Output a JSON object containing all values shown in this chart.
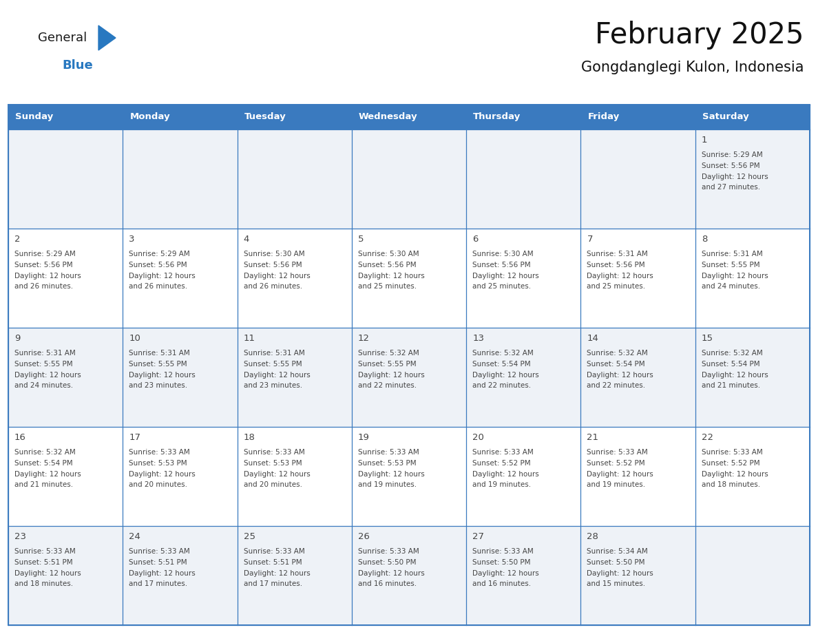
{
  "title": "February 2025",
  "subtitle": "Gongdanglegi Kulon, Indonesia",
  "header_color": "#3a7abf",
  "header_text_color": "#ffffff",
  "cell_bg_row0": "#eef2f7",
  "cell_bg_row1": "#ffffff",
  "border_color": "#3a7abf",
  "text_color": "#444444",
  "days_of_week": [
    "Sunday",
    "Monday",
    "Tuesday",
    "Wednesday",
    "Thursday",
    "Friday",
    "Saturday"
  ],
  "logo_text1": "General",
  "logo_text2": "Blue",
  "logo_color1": "#1a1a1a",
  "logo_color2": "#2878c0",
  "logo_triangle_color": "#2878c0",
  "calendar_data": [
    [
      null,
      null,
      null,
      null,
      null,
      null,
      {
        "day": 1,
        "sunrise": "5:29 AM",
        "sunset": "5:56 PM",
        "daylight_line1": "Daylight: 12 hours",
        "daylight_line2": "and 27 minutes."
      }
    ],
    [
      {
        "day": 2,
        "sunrise": "5:29 AM",
        "sunset": "5:56 PM",
        "daylight_line1": "Daylight: 12 hours",
        "daylight_line2": "and 26 minutes."
      },
      {
        "day": 3,
        "sunrise": "5:29 AM",
        "sunset": "5:56 PM",
        "daylight_line1": "Daylight: 12 hours",
        "daylight_line2": "and 26 minutes."
      },
      {
        "day": 4,
        "sunrise": "5:30 AM",
        "sunset": "5:56 PM",
        "daylight_line1": "Daylight: 12 hours",
        "daylight_line2": "and 26 minutes."
      },
      {
        "day": 5,
        "sunrise": "5:30 AM",
        "sunset": "5:56 PM",
        "daylight_line1": "Daylight: 12 hours",
        "daylight_line2": "and 25 minutes."
      },
      {
        "day": 6,
        "sunrise": "5:30 AM",
        "sunset": "5:56 PM",
        "daylight_line1": "Daylight: 12 hours",
        "daylight_line2": "and 25 minutes."
      },
      {
        "day": 7,
        "sunrise": "5:31 AM",
        "sunset": "5:56 PM",
        "daylight_line1": "Daylight: 12 hours",
        "daylight_line2": "and 25 minutes."
      },
      {
        "day": 8,
        "sunrise": "5:31 AM",
        "sunset": "5:55 PM",
        "daylight_line1": "Daylight: 12 hours",
        "daylight_line2": "and 24 minutes."
      }
    ],
    [
      {
        "day": 9,
        "sunrise": "5:31 AM",
        "sunset": "5:55 PM",
        "daylight_line1": "Daylight: 12 hours",
        "daylight_line2": "and 24 minutes."
      },
      {
        "day": 10,
        "sunrise": "5:31 AM",
        "sunset": "5:55 PM",
        "daylight_line1": "Daylight: 12 hours",
        "daylight_line2": "and 23 minutes."
      },
      {
        "day": 11,
        "sunrise": "5:31 AM",
        "sunset": "5:55 PM",
        "daylight_line1": "Daylight: 12 hours",
        "daylight_line2": "and 23 minutes."
      },
      {
        "day": 12,
        "sunrise": "5:32 AM",
        "sunset": "5:55 PM",
        "daylight_line1": "Daylight: 12 hours",
        "daylight_line2": "and 22 minutes."
      },
      {
        "day": 13,
        "sunrise": "5:32 AM",
        "sunset": "5:54 PM",
        "daylight_line1": "Daylight: 12 hours",
        "daylight_line2": "and 22 minutes."
      },
      {
        "day": 14,
        "sunrise": "5:32 AM",
        "sunset": "5:54 PM",
        "daylight_line1": "Daylight: 12 hours",
        "daylight_line2": "and 22 minutes."
      },
      {
        "day": 15,
        "sunrise": "5:32 AM",
        "sunset": "5:54 PM",
        "daylight_line1": "Daylight: 12 hours",
        "daylight_line2": "and 21 minutes."
      }
    ],
    [
      {
        "day": 16,
        "sunrise": "5:32 AM",
        "sunset": "5:54 PM",
        "daylight_line1": "Daylight: 12 hours",
        "daylight_line2": "and 21 minutes."
      },
      {
        "day": 17,
        "sunrise": "5:33 AM",
        "sunset": "5:53 PM",
        "daylight_line1": "Daylight: 12 hours",
        "daylight_line2": "and 20 minutes."
      },
      {
        "day": 18,
        "sunrise": "5:33 AM",
        "sunset": "5:53 PM",
        "daylight_line1": "Daylight: 12 hours",
        "daylight_line2": "and 20 minutes."
      },
      {
        "day": 19,
        "sunrise": "5:33 AM",
        "sunset": "5:53 PM",
        "daylight_line1": "Daylight: 12 hours",
        "daylight_line2": "and 19 minutes."
      },
      {
        "day": 20,
        "sunrise": "5:33 AM",
        "sunset": "5:52 PM",
        "daylight_line1": "Daylight: 12 hours",
        "daylight_line2": "and 19 minutes."
      },
      {
        "day": 21,
        "sunrise": "5:33 AM",
        "sunset": "5:52 PM",
        "daylight_line1": "Daylight: 12 hours",
        "daylight_line2": "and 19 minutes."
      },
      {
        "day": 22,
        "sunrise": "5:33 AM",
        "sunset": "5:52 PM",
        "daylight_line1": "Daylight: 12 hours",
        "daylight_line2": "and 18 minutes."
      }
    ],
    [
      {
        "day": 23,
        "sunrise": "5:33 AM",
        "sunset": "5:51 PM",
        "daylight_line1": "Daylight: 12 hours",
        "daylight_line2": "and 18 minutes."
      },
      {
        "day": 24,
        "sunrise": "5:33 AM",
        "sunset": "5:51 PM",
        "daylight_line1": "Daylight: 12 hours",
        "daylight_line2": "and 17 minutes."
      },
      {
        "day": 25,
        "sunrise": "5:33 AM",
        "sunset": "5:51 PM",
        "daylight_line1": "Daylight: 12 hours",
        "daylight_line2": "and 17 minutes."
      },
      {
        "day": 26,
        "sunrise": "5:33 AM",
        "sunset": "5:50 PM",
        "daylight_line1": "Daylight: 12 hours",
        "daylight_line2": "and 16 minutes."
      },
      {
        "day": 27,
        "sunrise": "5:33 AM",
        "sunset": "5:50 PM",
        "daylight_line1": "Daylight: 12 hours",
        "daylight_line2": "and 16 minutes."
      },
      {
        "day": 28,
        "sunrise": "5:34 AM",
        "sunset": "5:50 PM",
        "daylight_line1": "Daylight: 12 hours",
        "daylight_line2": "and 15 minutes."
      },
      null
    ]
  ]
}
